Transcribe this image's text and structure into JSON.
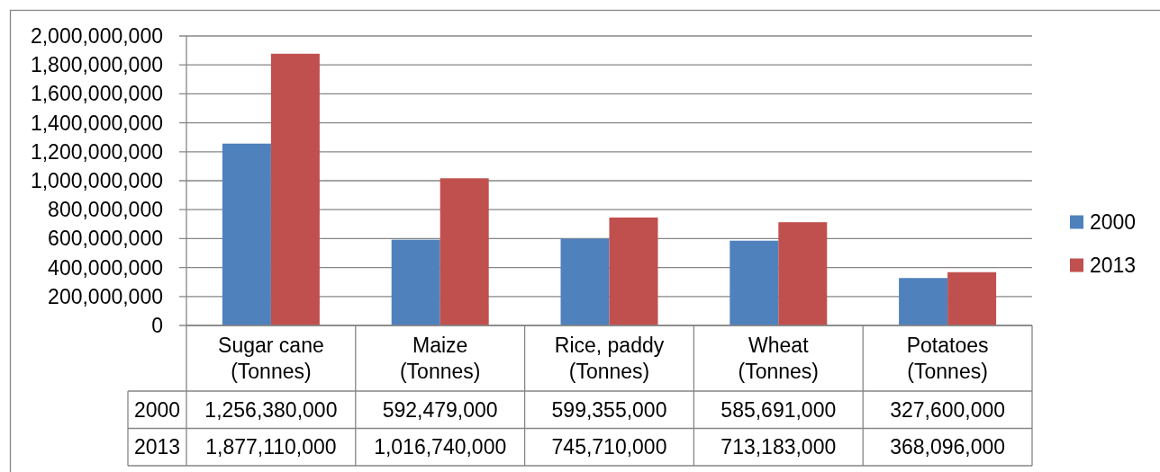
{
  "chart_data": {
    "type": "bar",
    "categories": [
      "Sugar cane (Tonnes)",
      "Maize (Tonnes)",
      "Rice, paddy (Tonnes)",
      "Wheat (Tonnes)",
      "Potatoes (Tonnes)"
    ],
    "series": [
      {
        "name": "2000",
        "color": "#4f81bd",
        "values": [
          1256380000,
          592479000,
          599355000,
          585691000,
          327600000
        ],
        "value_labels": [
          "1,256,380,000",
          "592,479,000",
          "599,355,000",
          "585,691,000",
          "327,600,000"
        ]
      },
      {
        "name": "2013",
        "color": "#c0504d",
        "values": [
          1877110000,
          1016740000,
          745710000,
          713183000,
          368096000
        ],
        "value_labels": [
          "1,877,110,000",
          "1,016,740,000",
          "745,710,000",
          "713,183,000",
          "368,096,000"
        ]
      }
    ],
    "ylim": [
      0,
      2000000000
    ],
    "yticks": [
      0,
      {
        "value": 200000000,
        "label": "200,000,000"
      },
      {
        "value": 400000000,
        "label": "400,000,000"
      },
      {
        "value": 600000000,
        "label": "600,000,000"
      },
      {
        "value": 800000000,
        "label": "800,000,000"
      },
      {
        "value": 1000000000,
        "label": "1,000,000,000"
      },
      {
        "value": 1200000000,
        "label": "1,200,000,000"
      },
      {
        "value": 1400000000,
        "label": "1,400,000,000"
      },
      {
        "value": 1600000000,
        "label": "1,600,000,000"
      },
      {
        "value": 1800000000,
        "label": "1,800,000,000"
      },
      {
        "value": 2000000000,
        "label": "2,000,000,000"
      }
    ],
    "grid": "y",
    "legend": "right"
  }
}
